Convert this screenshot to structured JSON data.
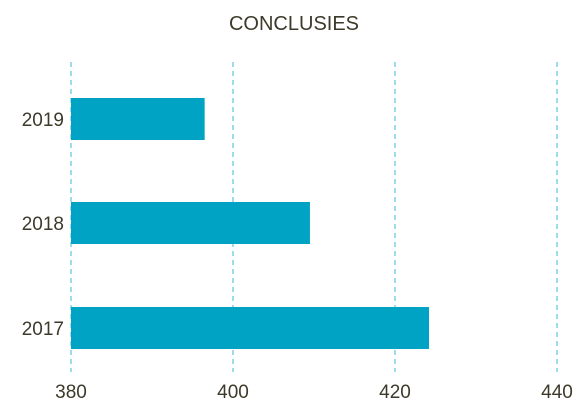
{
  "chart_data": {
    "type": "bar",
    "orientation": "horizontal",
    "title": "CONCLUSIES",
    "xlabel": "",
    "ylabel": "",
    "categories": [
      "2019",
      "2018",
      "2017"
    ],
    "values": [
      396.5,
      409.5,
      424.2
    ],
    "xlim": [
      380,
      440
    ],
    "xticks": [
      380,
      400,
      420,
      440
    ],
    "grid": "vertical-dashed",
    "legend": "none",
    "colors": {
      "bar": "#00a3c4",
      "grid": "#5bc6e0",
      "text": "#3d3a2a"
    }
  }
}
